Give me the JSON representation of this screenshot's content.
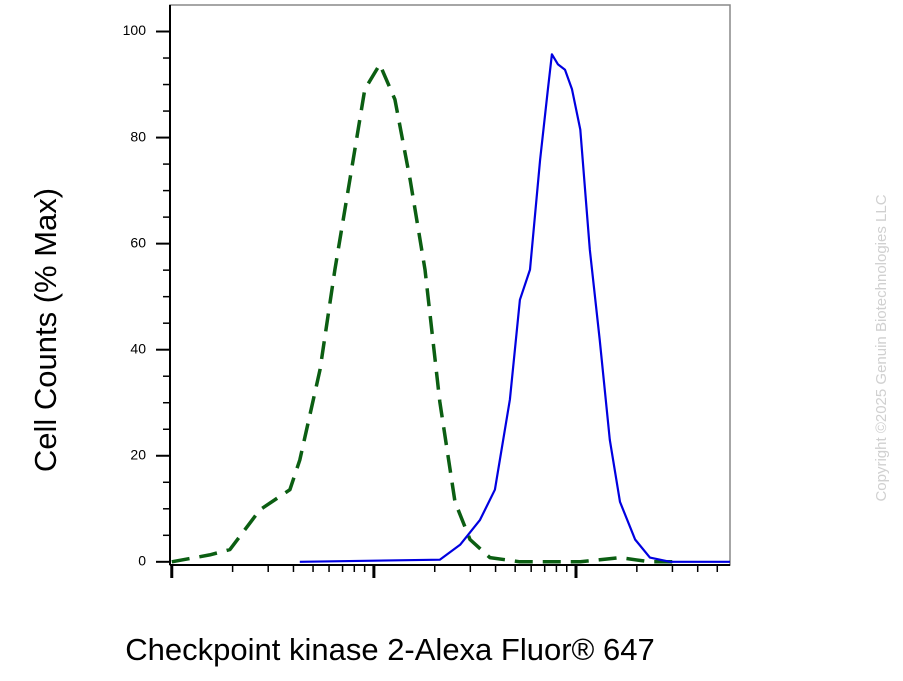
{
  "chart_data": {
    "type": "line",
    "y_label": "Cell Counts (% Max)",
    "x_label": "Checkpoint kinase 2-Alexa Fluor® 647",
    "watermark": "Copyright ©2025 Genuin Biotechnologies LLC",
    "xscale": "log",
    "xlim": [
      0.98,
      578
    ],
    "xticks": [
      1,
      10,
      100
    ],
    "xminorticks": [
      2,
      3,
      4,
      5,
      6,
      7,
      8,
      9,
      20,
      30,
      40,
      50,
      60,
      70,
      80,
      90,
      200,
      300,
      400,
      500
    ],
    "ylim": [
      -0.6,
      105
    ],
    "yticks": [
      0,
      20,
      40,
      60,
      80,
      100
    ],
    "yminorticks": [
      5,
      10,
      15,
      25,
      30,
      35,
      45,
      50,
      55,
      65,
      70,
      75,
      85,
      90,
      95
    ],
    "series": [
      {
        "color": "#0b5e12",
        "dash": true,
        "x": [
          1,
          1.54,
          1.94,
          2.73,
          3.84,
          4.3,
          5.41,
          6.41,
          7.61,
          9.02,
          10.7,
          12.7,
          15.1,
          17.9,
          21.2,
          25.2,
          29.9,
          37.5,
          52.8,
          105,
          165,
          232,
          327
        ],
        "values": [
          0,
          1.3,
          2.3,
          9.8,
          13.6,
          19.2,
          36.2,
          55.1,
          72.1,
          89.1,
          93.8,
          87.2,
          72.1,
          55.1,
          30.2,
          11.3,
          4.2,
          0.8,
          0,
          0,
          0.8,
          0,
          0
        ]
      },
      {
        "color": "#0000e0",
        "dash": false,
        "x": [
          4.3,
          21.2,
          26.7,
          33.5,
          39.7,
          47.1,
          52.8,
          59.2,
          66.4,
          72.6,
          76.0,
          81.5,
          88.2,
          95.5,
          105,
          117,
          131,
          147,
          165,
          196,
          232,
          292,
          578
        ],
        "values": [
          0,
          0.4,
          3.2,
          7.9,
          13.6,
          30.6,
          49.4,
          55.1,
          75.8,
          89.1,
          95.7,
          93.8,
          92.8,
          89.1,
          81.5,
          58.9,
          41.9,
          23.0,
          11.3,
          4.2,
          0.8,
          0,
          0
        ]
      }
    ]
  }
}
